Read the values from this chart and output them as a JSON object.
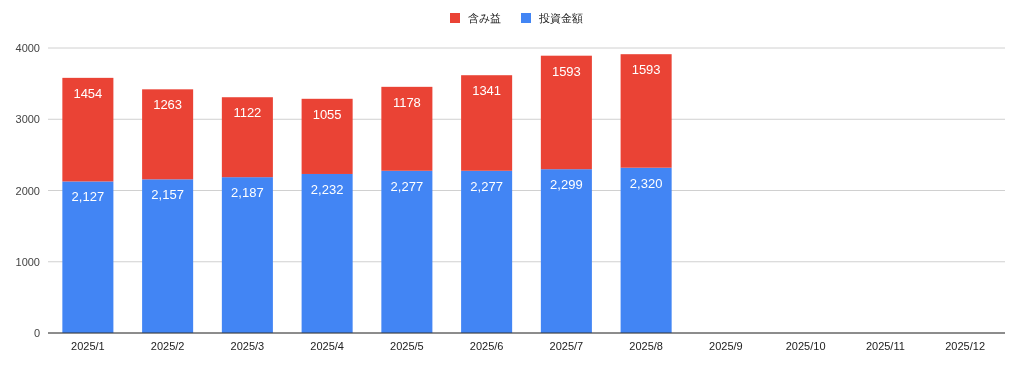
{
  "chart_data": {
    "type": "bar",
    "stacked": true,
    "categories": [
      "2025/1",
      "2025/2",
      "2025/3",
      "2025/4",
      "2025/5",
      "2025/6",
      "2025/7",
      "2025/8",
      "2025/9",
      "2025/10",
      "2025/11",
      "2025/12"
    ],
    "series": [
      {
        "name": "投資金額",
        "color": "#4285f4",
        "values": [
          2127,
          2157,
          2187,
          2232,
          2277,
          2277,
          2299,
          2320,
          null,
          null,
          null,
          null
        ],
        "value_labels": [
          "2,127",
          "2,157",
          "2,187",
          "2,232",
          "2,277",
          "2,277",
          "2,299",
          "2,320",
          null,
          null,
          null,
          null
        ]
      },
      {
        "name": "含み益",
        "color": "#ea4335",
        "values": [
          1454,
          1263,
          1122,
          1055,
          1178,
          1341,
          1593,
          1593,
          null,
          null,
          null,
          null
        ],
        "value_labels": [
          "1454",
          "1263",
          "1122",
          "1055",
          "1178",
          "1341",
          "1593",
          "1593",
          null,
          null,
          null,
          null
        ]
      }
    ],
    "ylim": [
      0,
      4000
    ],
    "yticks": [
      0,
      1000,
      2000,
      3000,
      4000
    ],
    "grid": "y",
    "legend": "top"
  }
}
